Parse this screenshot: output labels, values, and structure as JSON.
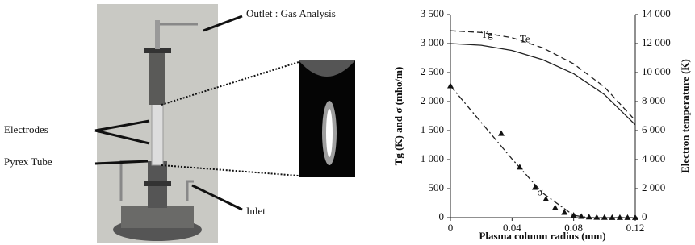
{
  "photo": {
    "labels": [
      "Outlet : Gas Analysis",
      "Electrodes",
      "Pyrex Tube",
      "Inlet"
    ]
  },
  "chart_data": {
    "type": "line",
    "xlabel": "Plasma column radius (mm)",
    "ylabel": "Tg (K) and σ (mho/m)",
    "y2label": "Electron temperature (K)",
    "xlim": [
      0,
      0.12
    ],
    "xticks": [
      0,
      0.04,
      0.08,
      0.12
    ],
    "ylim": [
      0,
      3500
    ],
    "yticks": [
      0,
      500,
      {
        "value": 1000,
        "label": "1 000"
      },
      {
        "value": 1500,
        "label": "1 500"
      },
      {
        "value": 2000,
        "label": "2 000"
      },
      {
        "value": 2500,
        "label": "2 500"
      },
      {
        "value": 3000,
        "label": "3 000"
      },
      {
        "value": 3500,
        "label": "3 500"
      }
    ],
    "y2lim": [
      0,
      14000
    ],
    "y2ticks": [
      0,
      {
        "value": 2000,
        "label": "2 000"
      },
      {
        "value": 4000,
        "label": "4 000"
      },
      {
        "value": 6000,
        "label": "6 000"
      },
      {
        "value": 8000,
        "label": "8 000"
      },
      {
        "value": 10000,
        "label": "10 000"
      },
      {
        "value": 12000,
        "label": "12 000"
      },
      {
        "value": 14000,
        "label": "14 000"
      }
    ],
    "series": [
      {
        "name": "Tg",
        "color": "#222222",
        "style": "solid",
        "x": [
          0,
          0.02,
          0.04,
          0.06,
          0.08,
          0.1,
          0.12
        ],
        "values": [
          3000,
          2970,
          2880,
          2720,
          2480,
          2120,
          1600
        ]
      },
      {
        "name": "Te",
        "color": "#222222",
        "style": "dashed",
        "axis": "y2",
        "x": [
          0,
          0.02,
          0.04,
          0.06,
          0.08,
          0.1,
          0.12
        ],
        "values": [
          12880,
          12760,
          12400,
          11700,
          10600,
          9000,
          6700
        ]
      },
      {
        "name": "σ",
        "color": "#222222",
        "style": "dashdot",
        "x": [
          0,
          0.02,
          0.04,
          0.06,
          0.08,
          0.09,
          0.1,
          0.12
        ],
        "values": [
          2270,
          1640,
          1010,
          420,
          40,
          0,
          0,
          0
        ]
      },
      {
        "type": "scatter",
        "color": "#111111",
        "marker": "triangle",
        "x": [
          0,
          0.033,
          0.045,
          0.055,
          0.062,
          0.068,
          0.074,
          0.08,
          0.085,
          0.09,
          0.095,
          0.1,
          0.105,
          0.11,
          0.115,
          0.12
        ],
        "values": [
          2270,
          1450,
          870,
          520,
          320,
          170,
          90,
          40,
          20,
          10,
          5,
          3,
          2,
          2,
          1,
          1
        ]
      }
    ]
  }
}
